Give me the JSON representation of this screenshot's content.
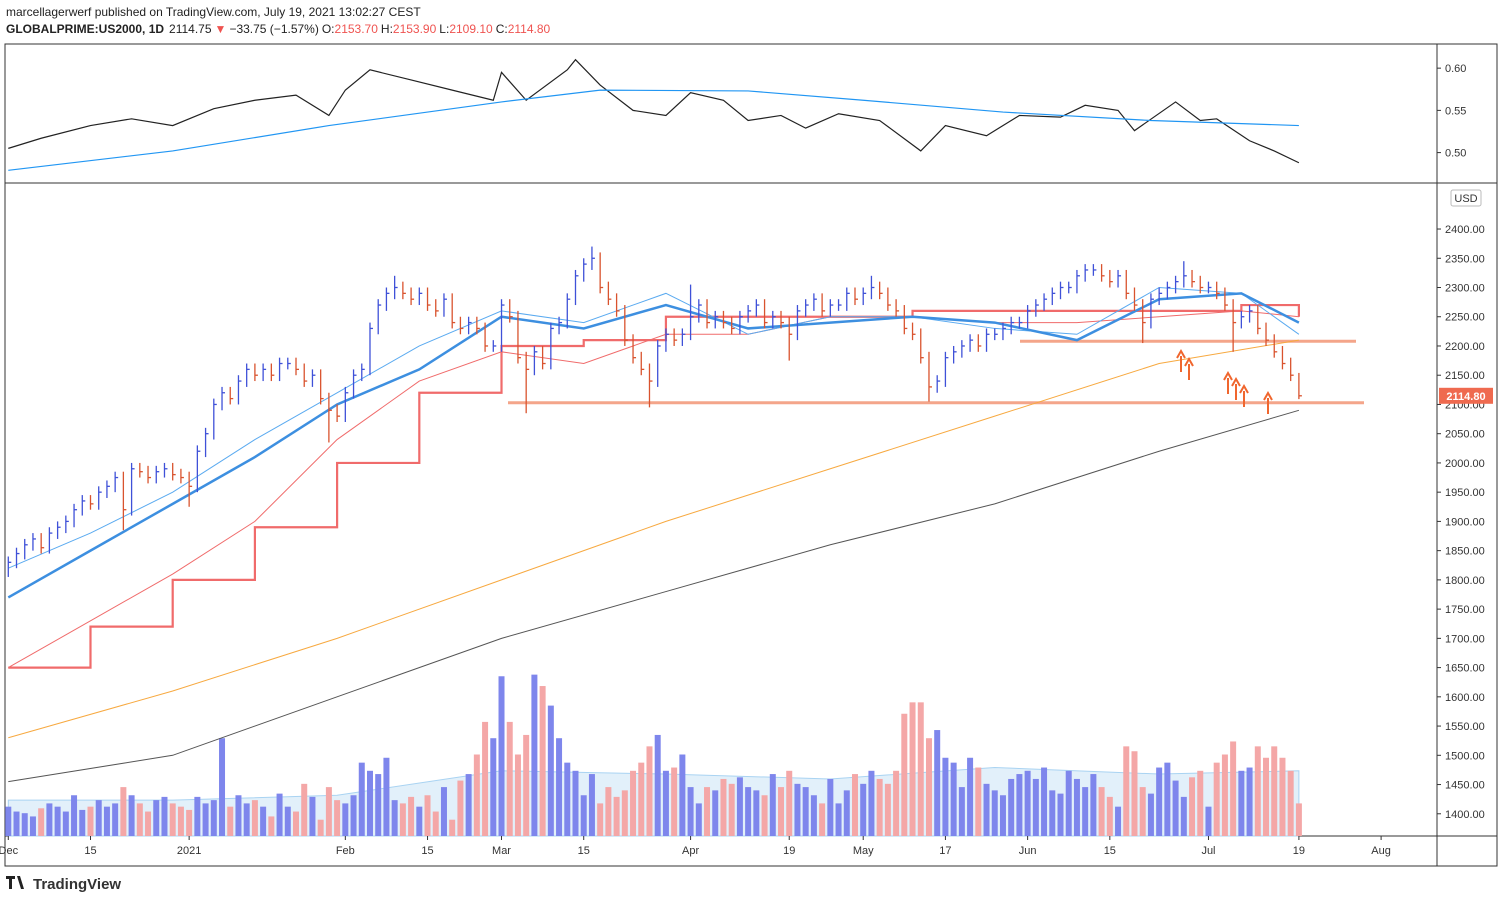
{
  "header": {
    "byline": "marcellagerwerf published on TradingView.com, July 19, 2021 13:02:27 CEST",
    "symbol": "GLOBALPRIME:US2000, 1D",
    "price": "2114.75",
    "arrow": "▼",
    "change": "−33.75 (−1.57%)",
    "o_key": "O:",
    "o": "2153.70",
    "h_key": "H:",
    "h": "2153.90",
    "l_key": "L:",
    "l": "2109.10",
    "c_key": "C:",
    "c": "2114.80"
  },
  "footer": {
    "logo": "TradingView"
  },
  "chart_data": [
    {
      "type": "line",
      "xlim": [
        -0.4,
        173.8
      ],
      "ylim": [
        0.464,
        0.6286
      ],
      "yticks": [
        {
          "value": 0.5,
          "label": "0.50"
        },
        {
          "value": 0.55,
          "label": "0.55"
        },
        {
          "value": 0.6,
          "label": "0.60"
        }
      ],
      "series": [
        {
          "color": "#222222",
          "x": [
            0,
            4,
            10,
            15,
            20,
            25,
            30,
            35,
            39,
            41,
            44,
            49,
            54,
            59,
            60,
            63,
            68,
            69,
            72,
            76,
            80,
            83,
            87,
            90,
            94,
            97,
            101,
            106,
            111,
            114,
            119,
            123,
            128,
            131,
            135,
            137,
            142,
            145,
            147,
            151,
            154,
            157
          ],
          "values": [
            0.505,
            0.517,
            0.532,
            0.54,
            0.532,
            0.552,
            0.562,
            0.568,
            0.544,
            0.574,
            0.598,
            0.586,
            0.574,
            0.562,
            0.595,
            0.562,
            0.598,
            0.61,
            0.58,
            0.55,
            0.544,
            0.571,
            0.562,
            0.538,
            0.544,
            0.529,
            0.546,
            0.538,
            0.502,
            0.532,
            0.52,
            0.544,
            0.542,
            0.556,
            0.55,
            0.526,
            0.56,
            0.538,
            0.54,
            0.514,
            0.502,
            0.488
          ]
        },
        {
          "color": "#2196f3",
          "x": [
            0,
            20,
            39,
            60,
            72,
            90,
            104,
            121,
            139,
            157
          ],
          "values": [
            0.479,
            0.502,
            0.532,
            0.56,
            0.574,
            0.573,
            0.562,
            0.548,
            0.538,
            0.532
          ]
        }
      ]
    },
    {
      "type": "ohlc",
      "unit": "USD",
      "xlim": [
        -0.4,
        173.8
      ],
      "ylim": [
        1362,
        2477
      ],
      "yticks": [
        {
          "value": 1400,
          "label": "1400.00"
        },
        {
          "value": 1450,
          "label": "1450.00"
        },
        {
          "value": 1500,
          "label": "1500.00"
        },
        {
          "value": 1550,
          "label": "1550.00"
        },
        {
          "value": 1600,
          "label": "1600.00"
        },
        {
          "value": 1650,
          "label": "1650.00"
        },
        {
          "value": 1700,
          "label": "1700.00"
        },
        {
          "value": 1750,
          "label": "1750.00"
        },
        {
          "value": 1800,
          "label": "1800.00"
        },
        {
          "value": 1850,
          "label": "1850.00"
        },
        {
          "value": 1900,
          "label": "1900.00"
        },
        {
          "value": 1950,
          "label": "1950.00"
        },
        {
          "value": 2000,
          "label": "2000.00"
        },
        {
          "value": 2050,
          "label": "2050.00"
        },
        {
          "value": 2100,
          "label": "2100.00"
        },
        {
          "value": 2150,
          "label": "2150.00"
        },
        {
          "value": 2200,
          "label": "2200.00"
        },
        {
          "value": 2250,
          "label": "2250.00"
        },
        {
          "value": 2300,
          "label": "2300.00"
        },
        {
          "value": 2350,
          "label": "2350.00"
        },
        {
          "value": 2400,
          "label": "2400.00"
        }
      ],
      "xticks": [
        {
          "value": 0,
          "label": "Dec"
        },
        {
          "value": 10,
          "label": "15"
        },
        {
          "value": 22,
          "label": "2021"
        },
        {
          "value": 41,
          "label": "Feb"
        },
        {
          "value": 51,
          "label": "15"
        },
        {
          "value": 60,
          "label": "Mar"
        },
        {
          "value": 70,
          "label": "15"
        },
        {
          "value": 83,
          "label": "Apr"
        },
        {
          "value": 95,
          "label": "19"
        },
        {
          "value": 104,
          "label": "May"
        },
        {
          "value": 114,
          "label": "17"
        },
        {
          "value": 124,
          "label": "Jun"
        },
        {
          "value": 134,
          "label": "15"
        },
        {
          "value": 146,
          "label": "Jul"
        },
        {
          "value": 157,
          "label": "19"
        },
        {
          "value": 167,
          "label": "Aug"
        }
      ],
      "up_color": "#3f51d8",
      "down_color": "#d9532e",
      "high": [
        1840,
        1855,
        1870,
        1880,
        1880,
        1890,
        1900,
        1910,
        1930,
        1945,
        1945,
        1960,
        1970,
        1985,
        1985,
        2000,
        2000,
        1995,
        1995,
        2000,
        2000,
        1990,
        1985,
        2030,
        2060,
        2110,
        2130,
        2130,
        2150,
        2170,
        2170,
        2170,
        2170,
        2180,
        2180,
        2180,
        2170,
        2160,
        2160,
        2120,
        2100,
        2130,
        2160,
        2170,
        2240,
        2280,
        2300,
        2320,
        2310,
        2300,
        2300,
        2300,
        2280,
        2290,
        2290,
        2250,
        2250,
        2250,
        2240,
        2210,
        2280,
        2280,
        2260,
        2190,
        2200,
        2200,
        2240,
        2250,
        2290,
        2330,
        2350,
        2370,
        2360,
        2310,
        2290,
        2270,
        2220,
        2190,
        2170,
        2210,
        2230,
        2230,
        2230,
        2305,
        2280,
        2280,
        2260,
        2260,
        2250,
        2260,
        2270,
        2280,
        2280,
        2260,
        2260,
        2250,
        2270,
        2280,
        2290,
        2290,
        2280,
        2280,
        2300,
        2300,
        2300,
        2320,
        2310,
        2300,
        2280,
        2270,
        2240,
        2230,
        2190,
        2150,
        2190,
        2200,
        2210,
        2220,
        2220,
        2230,
        2230,
        2240,
        2250,
        2250,
        2270,
        2280,
        2290,
        2300,
        2310,
        2310,
        2330,
        2340,
        2340,
        2340,
        2330,
        2330,
        2330,
        2300,
        2280,
        2290,
        2300,
        2310,
        2320,
        2345,
        2330,
        2320,
        2310,
        2310,
        2300,
        2280,
        2260,
        2270,
        2270,
        2240,
        2220,
        2200,
        2180,
        2153.9
      ],
      "low": [
        1805,
        1820,
        1835,
        1850,
        1845,
        1845,
        1870,
        1880,
        1890,
        1910,
        1920,
        1920,
        1940,
        1950,
        1885,
        1910,
        1975,
        1965,
        1965,
        1975,
        1970,
        1965,
        1925,
        1950,
        2010,
        2040,
        2090,
        2100,
        2100,
        2130,
        2140,
        2140,
        2140,
        2140,
        2160,
        2150,
        2130,
        2130,
        2100,
        2035,
        2070,
        2070,
        2110,
        2140,
        2150,
        2220,
        2260,
        2280,
        2280,
        2270,
        2270,
        2260,
        2250,
        2250,
        2230,
        2220,
        2220,
        2220,
        2190,
        2190,
        2190,
        2240,
        2170,
        2085,
        2150,
        2160,
        2160,
        2220,
        2230,
        2270,
        2310,
        2330,
        2290,
        2270,
        2250,
        2200,
        2170,
        2150,
        2095,
        2130,
        2190,
        2200,
        2200,
        2210,
        2240,
        2230,
        2230,
        2230,
        2220,
        2220,
        2240,
        2250,
        2230,
        2230,
        2230,
        2175,
        2210,
        2250,
        2260,
        2250,
        2250,
        2260,
        2260,
        2270,
        2270,
        2280,
        2280,
        2260,
        2250,
        2220,
        2210,
        2170,
        2105,
        2120,
        2130,
        2170,
        2180,
        2190,
        2190,
        2190,
        2210,
        2210,
        2220,
        2230,
        2230,
        2250,
        2260,
        2270,
        2280,
        2290,
        2290,
        2310,
        2320,
        2310,
        2300,
        2300,
        2280,
        2260,
        2205,
        2230,
        2270,
        2280,
        2290,
        2300,
        2300,
        2290,
        2290,
        2280,
        2260,
        2190,
        2230,
        2240,
        2220,
        2200,
        2180,
        2160,
        2140,
        2109.1
      ],
      "close": [
        1830,
        1845,
        1860,
        1870,
        1855,
        1880,
        1890,
        1900,
        1920,
        1935,
        1930,
        1950,
        1960,
        1975,
        1920,
        1990,
        1985,
        1975,
        1985,
        1990,
        1980,
        1975,
        1960,
        2020,
        2050,
        2100,
        2120,
        2110,
        2140,
        2160,
        2150,
        2160,
        2150,
        2170,
        2170,
        2160,
        2140,
        2150,
        2110,
        2090,
        2080,
        2120,
        2150,
        2160,
        2230,
        2270,
        2290,
        2300,
        2290,
        2280,
        2290,
        2270,
        2260,
        2280,
        2240,
        2230,
        2240,
        2230,
        2200,
        2200,
        2270,
        2250,
        2180,
        2160,
        2190,
        2170,
        2230,
        2240,
        2280,
        2320,
        2340,
        2350,
        2300,
        2280,
        2260,
        2210,
        2180,
        2160,
        2140,
        2200,
        2220,
        2210,
        2220,
        2250,
        2270,
        2240,
        2250,
        2240,
        2230,
        2250,
        2260,
        2270,
        2240,
        2250,
        2240,
        2220,
        2260,
        2270,
        2280,
        2260,
        2270,
        2270,
        2290,
        2280,
        2290,
        2300,
        2290,
        2270,
        2260,
        2230,
        2220,
        2180,
        2130,
        2140,
        2180,
        2190,
        2200,
        2210,
        2200,
        2220,
        2220,
        2230,
        2240,
        2240,
        2260,
        2270,
        2280,
        2290,
        2300,
        2300,
        2320,
        2330,
        2330,
        2320,
        2310,
        2320,
        2290,
        2270,
        2240,
        2280,
        2290,
        2300,
        2310,
        2320,
        2310,
        2300,
        2300,
        2290,
        2270,
        2240,
        2250,
        2260,
        2230,
        2210,
        2190,
        2170,
        2150,
        2114.8
      ],
      "lines": [
        {
          "color": "#f06b6b",
          "width": 2.2,
          "step": true,
          "x": [
            0,
            10,
            20,
            30,
            40,
            50,
            60,
            70,
            80,
            90,
            100,
            110,
            120,
            130,
            140,
            150,
            157
          ],
          "values": [
            1650,
            1720,
            1800,
            1890,
            2000,
            2120,
            2200,
            2210,
            2250,
            2250,
            2250,
            2260,
            2260,
            2260,
            2260,
            2270,
            2250
          ]
        },
        {
          "color": "#f06b6b",
          "width": 1,
          "x": [
            0,
            10,
            20,
            30,
            40,
            50,
            60,
            70,
            80,
            90,
            100,
            110,
            120,
            130,
            140,
            150,
            157
          ],
          "values": [
            1650,
            1730,
            1810,
            1900,
            2040,
            2140,
            2190,
            2170,
            2220,
            2220,
            2250,
            2250,
            2240,
            2240,
            2250,
            2260,
            2250
          ]
        },
        {
          "color": "#f7a940",
          "width": 1,
          "x": [
            0,
            20,
            40,
            60,
            80,
            100,
            120,
            140,
            157
          ],
          "values": [
            1530,
            1610,
            1700,
            1800,
            1900,
            1990,
            2080,
            2170,
            2210
          ]
        },
        {
          "color": "#555555",
          "width": 1,
          "x": [
            0,
            20,
            40,
            60,
            80,
            100,
            120,
            140,
            157
          ],
          "values": [
            1455,
            1500,
            1600,
            1700,
            1780,
            1860,
            1930,
            2020,
            2090
          ]
        },
        {
          "color": "#5aaaf0",
          "width": 1,
          "x": [
            0,
            10,
            20,
            30,
            40,
            50,
            60,
            70,
            80,
            90,
            100,
            110,
            120,
            130,
            140,
            150,
            157
          ],
          "values": [
            1820,
            1880,
            1950,
            2040,
            2120,
            2200,
            2260,
            2240,
            2290,
            2220,
            2250,
            2250,
            2230,
            2220,
            2300,
            2290,
            2220
          ]
        },
        {
          "color": "#3d8fe0",
          "width": 2.5,
          "x": [
            0,
            10,
            20,
            30,
            40,
            50,
            60,
            70,
            80,
            90,
            100,
            110,
            120,
            130,
            140,
            150,
            157
          ],
          "values": [
            1770,
            1850,
            1930,
            2010,
            2100,
            2160,
            2250,
            2230,
            2270,
            2230,
            2240,
            2250,
            2240,
            2210,
            2280,
            2290,
            2240
          ]
        }
      ],
      "levels": [
        2208,
        2103
      ],
      "level_color": "#f4a58a",
      "last_label": "2114.80",
      "last_color": "#ef6a4f"
    },
    {
      "type": "bar",
      "xlim": [
        -0.4,
        173.8
      ],
      "ylim": [
        0,
        100
      ],
      "up_color": "#7e86ec",
      "down_color": "#f4a7a7",
      "values": [
        18,
        15,
        14,
        12,
        17,
        20,
        18,
        15,
        25,
        16,
        18,
        22,
        18,
        20,
        30,
        25,
        20,
        15,
        22,
        24,
        20,
        18,
        16,
        24,
        20,
        22,
        60,
        18,
        25,
        20,
        22,
        18,
        12,
        26,
        18,
        15,
        32,
        24,
        10,
        30,
        22,
        20,
        25,
        45,
        40,
        38,
        48,
        22,
        20,
        24,
        18,
        25,
        15,
        30,
        10,
        34,
        38,
        50,
        70,
        60,
        98,
        70,
        50,
        62,
        99,
        92,
        80,
        60,
        45,
        40,
        25,
        38,
        20,
        30,
        24,
        28,
        40,
        45,
        55,
        62,
        40,
        42,
        50,
        30,
        20,
        30,
        28,
        35,
        32,
        36,
        30,
        28,
        25,
        38,
        30,
        40,
        32,
        30,
        25,
        20,
        35,
        20,
        28,
        38,
        32,
        40,
        35,
        32,
        40,
        75,
        82,
        82,
        60,
        65,
        48,
        45,
        30,
        48,
        42,
        32,
        28,
        25,
        35,
        38,
        40,
        35,
        42,
        28,
        26,
        40,
        35,
        30,
        38,
        30,
        24,
        18,
        55,
        52,
        30,
        26,
        42,
        45,
        34,
        24,
        36,
        40,
        18,
        45,
        50,
        58,
        40,
        42,
        55,
        48,
        55,
        48,
        40,
        20
      ],
      "average": {
        "color": "#cfe6f7",
        "x": [
          0,
          20,
          40,
          60,
          80,
          100,
          120,
          140,
          157
        ],
        "values": [
          22,
          22,
          25,
          40,
          38,
          35,
          42,
          38,
          40
        ]
      }
    }
  ]
}
